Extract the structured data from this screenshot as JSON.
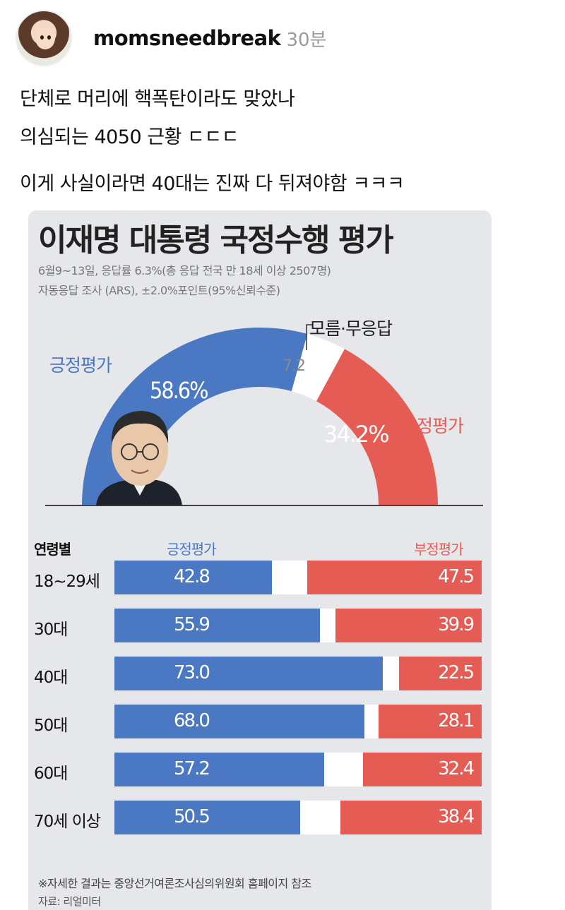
{
  "post": {
    "username": "momsneedbreak",
    "time": "30분",
    "lines": [
      "단체로 머리에 핵폭탄이라도 맞았나",
      "의심되는 4050 근황 ㄷㄷㄷ",
      "이게 사실이라면 40대는 진짜 다 뒤져야함 ㅋㅋㅋ"
    ]
  },
  "infographic": {
    "title": "이재명 대통령 국정수행 평가",
    "subtitle1": "6월9~13일, 응답률 6.3%(총 응답 전국 만 18세 이상 2507명)",
    "subtitle2": "자동응답 조사 (ARS), ±2.0%포인트(95%신뢰수준)",
    "positive_label": "긍정평가",
    "negative_label": "부정평가",
    "unknown_label": "모름·무응답",
    "positive_pct": "58.6%",
    "negative_pct": "34.2%",
    "unknown_pct": "7.2",
    "age_header": "연령별",
    "note": "※자세한 결과는 중앙선거여론조사심의위원회 홈페이지 참조",
    "source": "자료: 리얼미터"
  },
  "colors": {
    "positive": "#4a78c3",
    "negative": "#e45c54",
    "card_bg": "#e6e7ea"
  },
  "chart_data": [
    {
      "type": "pie",
      "title": "이재명 대통령 국정수행 평가",
      "categories": [
        "긍정평가",
        "모름·무응답",
        "부정평가"
      ],
      "values": [
        58.6,
        7.2,
        34.2
      ]
    },
    {
      "type": "bar",
      "categories": [
        "18~29세",
        "30대",
        "40대",
        "50대",
        "60대",
        "70세 이상"
      ],
      "series": [
        {
          "name": "긍정평가",
          "values": [
            42.8,
            55.9,
            73.0,
            68.0,
            57.2,
            50.5
          ],
          "labels": [
            "42.8",
            "55.9",
            "73.0",
            "68.0",
            "57.2",
            "50.5"
          ]
        },
        {
          "name": "부정평가",
          "values": [
            47.5,
            39.9,
            22.5,
            28.1,
            32.4,
            38.4
          ],
          "labels": [
            "47.5",
            "39.9",
            "22.5",
            "28.1",
            "32.4",
            "38.4"
          ]
        }
      ],
      "xlabel": "연령별",
      "ylim": [
        0,
        100
      ]
    }
  ]
}
